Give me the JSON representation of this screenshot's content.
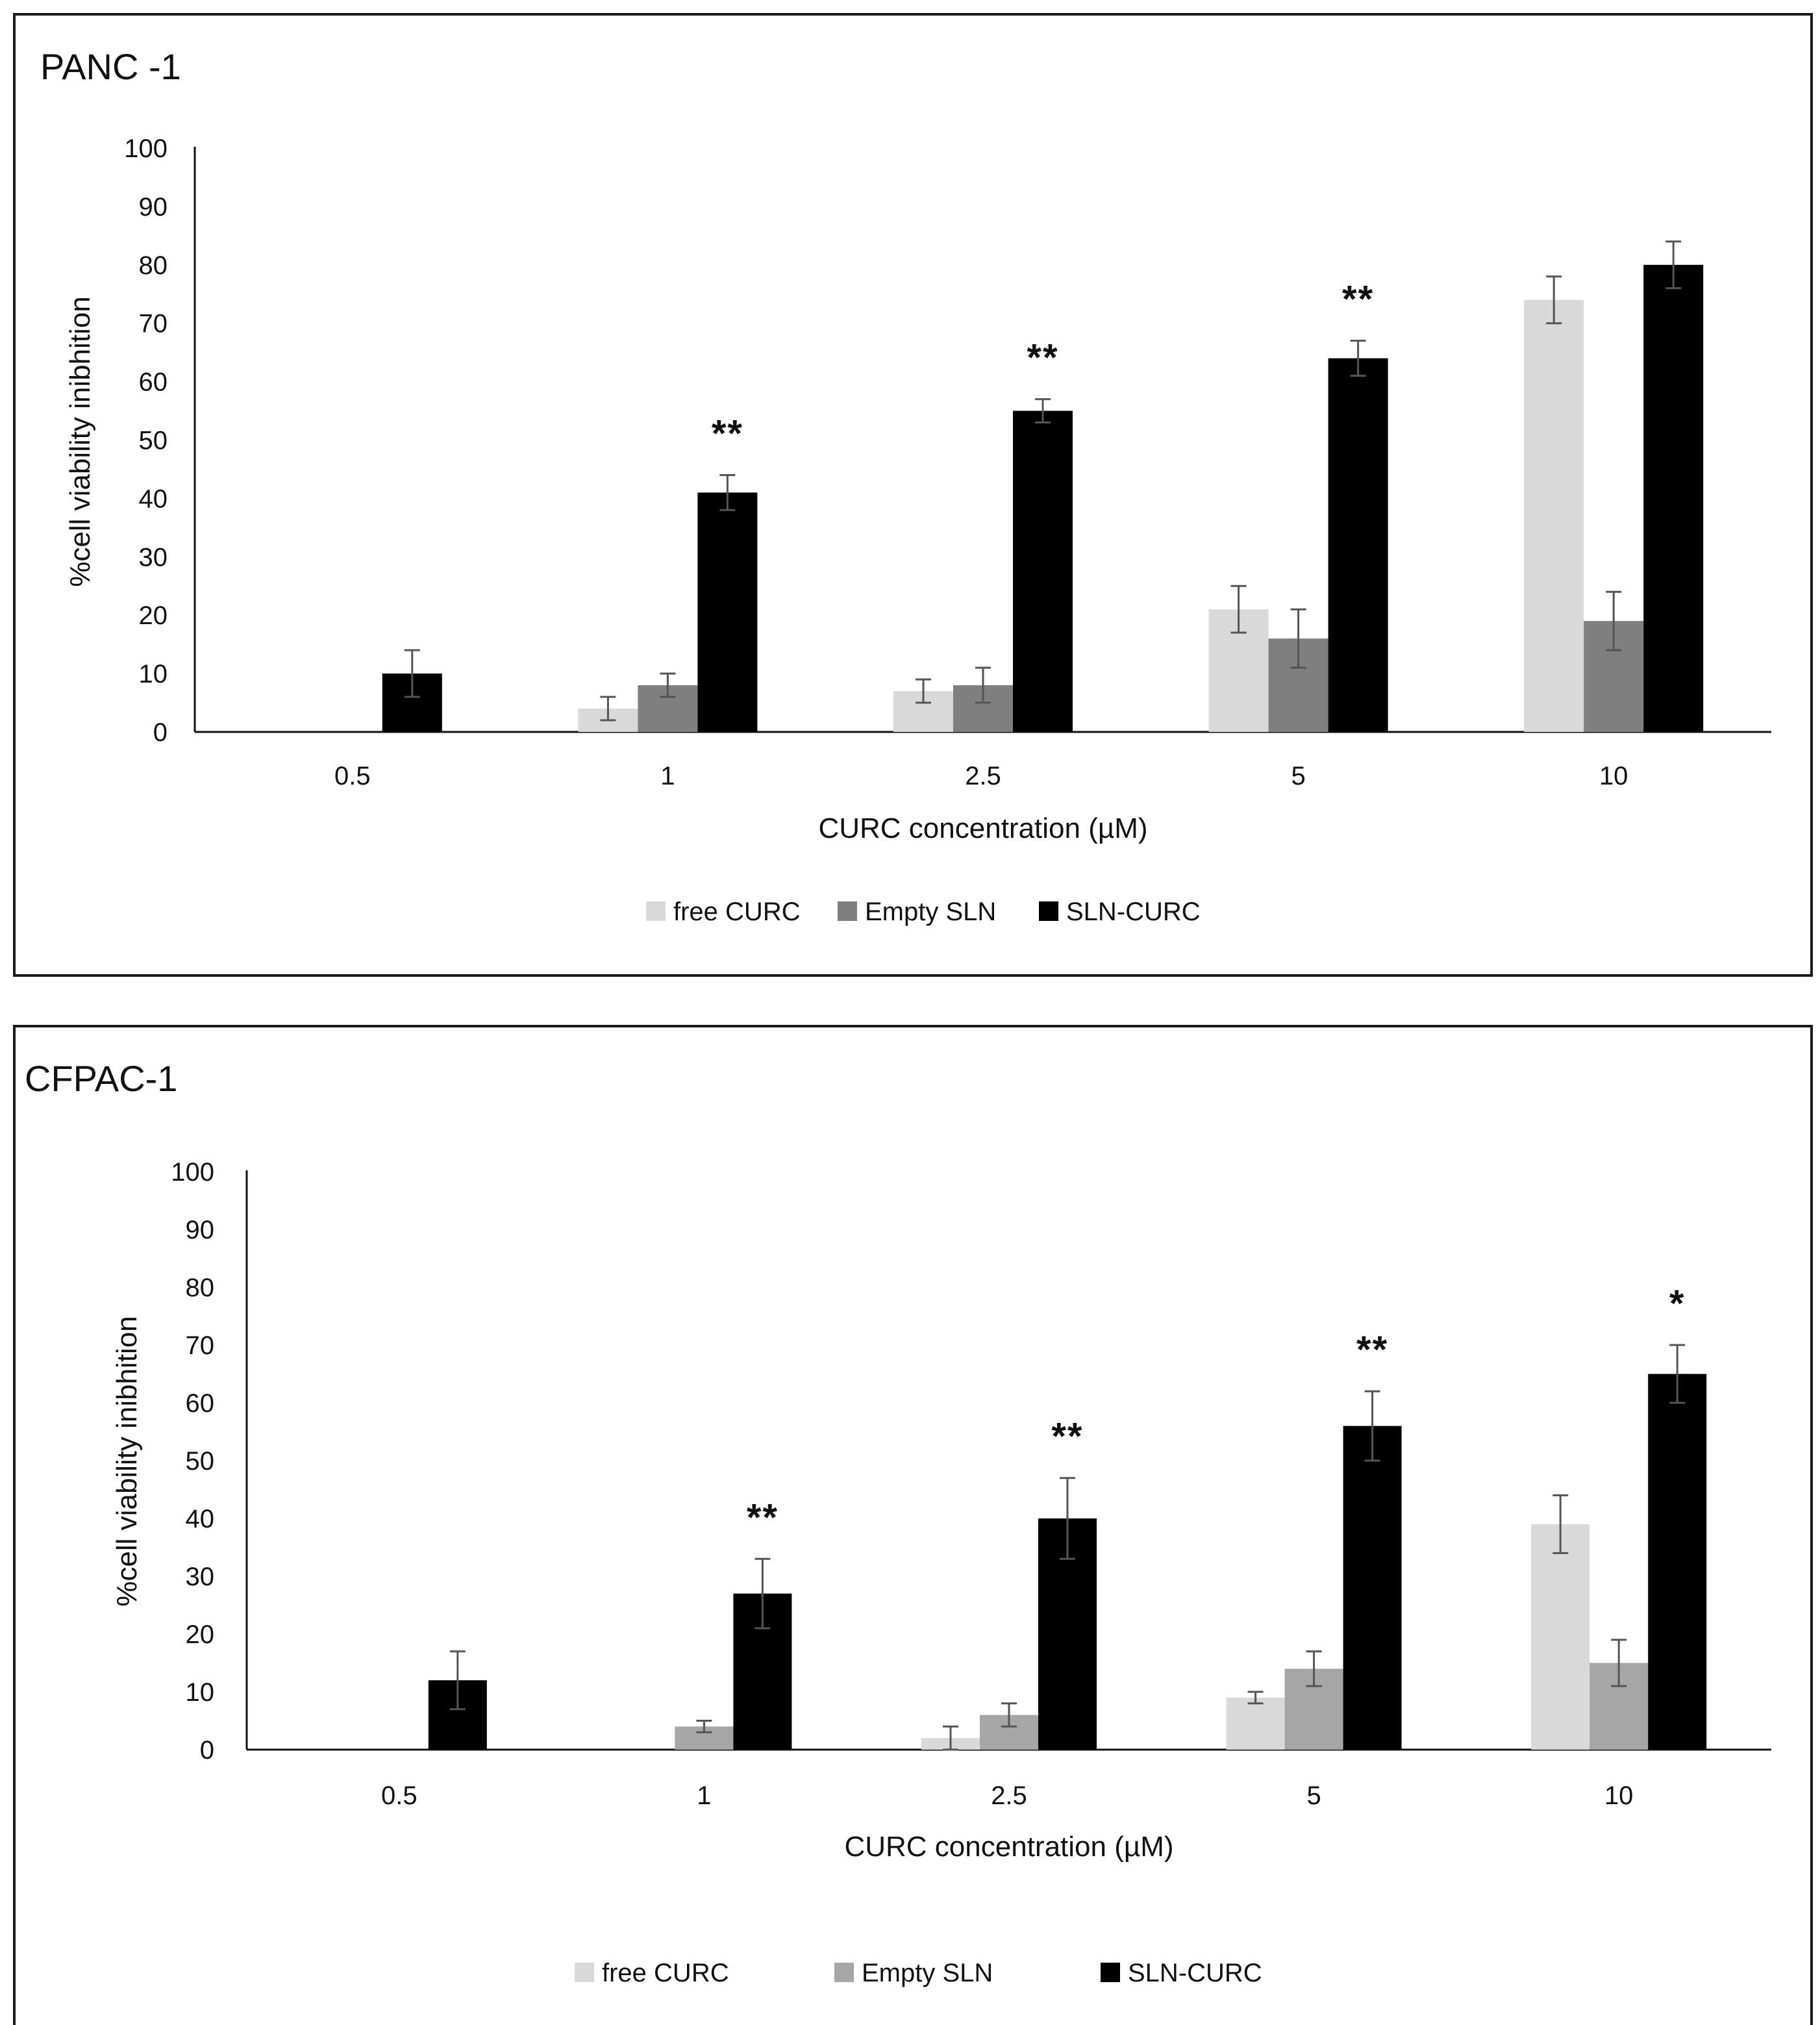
{
  "chart_data": [
    {
      "type": "bar",
      "title": "PANC -1",
      "xlabel": "CURC concentration (µM)",
      "ylabel": "%cell viability inibhition",
      "ylim": [
        0,
        100
      ],
      "yticks": [
        "0",
        "10",
        "20",
        "30",
        "40",
        "50",
        "60",
        "70",
        "80",
        "90",
        "100"
      ],
      "categories": [
        "0.5",
        "1",
        "2.5",
        "5",
        "10"
      ],
      "series": [
        {
          "name": "free CURC",
          "color": "#d9d9d9",
          "values": [
            null,
            4,
            7,
            21,
            74
          ],
          "errors": [
            null,
            2,
            2,
            4,
            4
          ]
        },
        {
          "name": "Empty SLN",
          "color": "#7f7f7f",
          "values": [
            null,
            8,
            8,
            16,
            19
          ],
          "errors": [
            null,
            2,
            3,
            5,
            5
          ]
        },
        {
          "name": "SLN-CURC",
          "color": "#000000",
          "values": [
            10,
            41,
            55,
            64,
            80
          ],
          "errors": [
            4,
            3,
            2,
            3,
            4
          ]
        }
      ],
      "significance": [
        "",
        "**",
        "**",
        "**",
        ""
      ]
    },
    {
      "type": "bar",
      "title": "CFPAC-1",
      "xlabel": "CURC concentration (µM)",
      "ylabel": "%cell viability  inibhition",
      "ylim": [
        0,
        100
      ],
      "yticks": [
        "0",
        "10",
        "20",
        "30",
        "40",
        "50",
        "60",
        "70",
        "80",
        "90",
        "100"
      ],
      "categories": [
        "0.5",
        "1",
        "2.5",
        "5",
        "10"
      ],
      "series": [
        {
          "name": "free CURC",
          "color": "#d9d9d9",
          "values": [
            null,
            null,
            2,
            9,
            39
          ],
          "errors": [
            null,
            null,
            2,
            1,
            5
          ]
        },
        {
          "name": "Empty SLN",
          "color": "#a6a6a6",
          "values": [
            null,
            4,
            6,
            14,
            15
          ],
          "errors": [
            null,
            1,
            2,
            3,
            4
          ]
        },
        {
          "name": "SLN-CURC",
          "color": "#000000",
          "values": [
            12,
            27,
            40,
            56,
            65
          ],
          "errors": [
            5,
            6,
            7,
            6,
            5
          ]
        }
      ],
      "significance": [
        "",
        "**",
        "**",
        "**",
        "*"
      ]
    }
  ]
}
